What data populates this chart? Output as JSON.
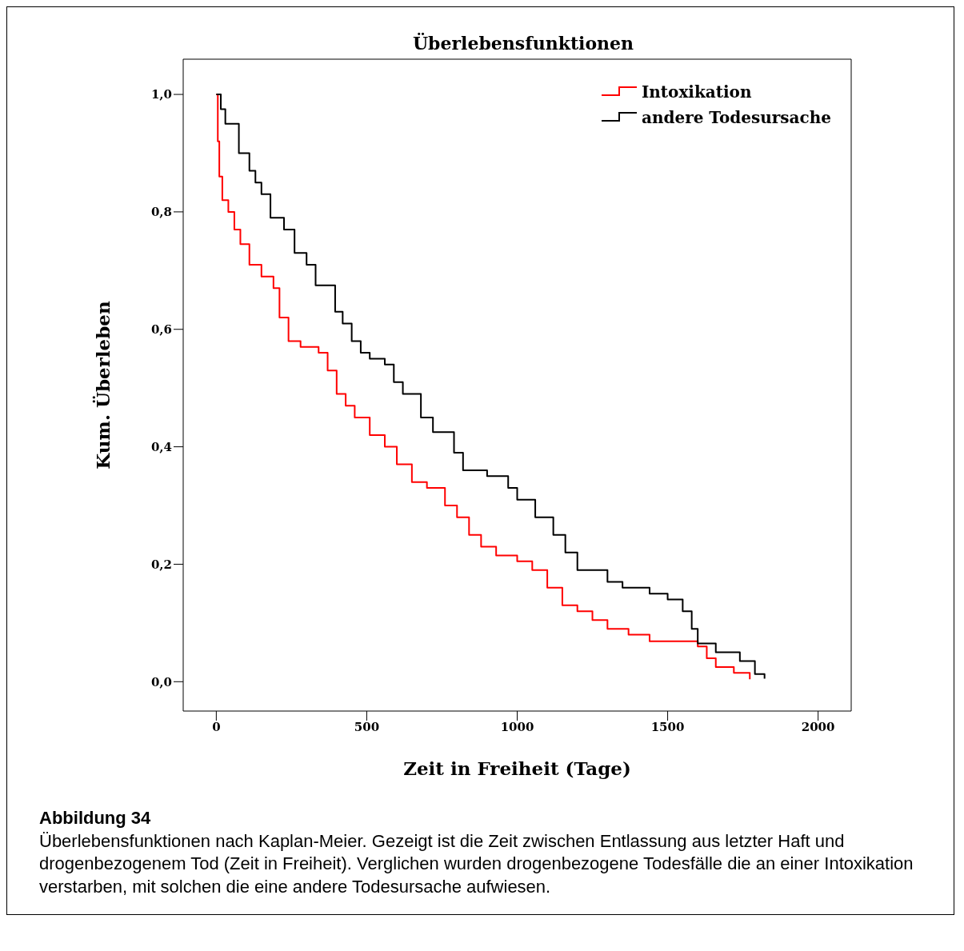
{
  "chart_data": {
    "type": "step",
    "title": "Überlebensfunktionen",
    "xlabel": "Zeit in Freiheit (Tage)",
    "ylabel": "Kum. Überleben",
    "xlim": [
      -110,
      2110
    ],
    "xticks": [
      0,
      500,
      1000,
      1500,
      2000
    ],
    "ylim": [
      -0.05,
      1.06
    ],
    "yticks": [
      {
        "value": 0,
        "label": "0,0"
      },
      {
        "value": 0.2,
        "label": "0,2"
      },
      {
        "value": 0.4,
        "label": "0,4"
      },
      {
        "value": 0.6,
        "label": "0,6"
      },
      {
        "value": 0.8,
        "label": "0,8"
      },
      {
        "value": 1,
        "label": "1,0"
      }
    ],
    "grid": false,
    "legend": "top right",
    "marker": "none",
    "line_style": "solid",
    "series": [
      {
        "name": "Intoxikation",
        "color": "#ff0000",
        "x": [
          0,
          5,
          10,
          20,
          40,
          60,
          80,
          110,
          150,
          190,
          210,
          240,
          280,
          340,
          370,
          400,
          430,
          460,
          510,
          560,
          600,
          650,
          700,
          760,
          800,
          840,
          880,
          930,
          1000,
          1050,
          1100,
          1150,
          1200,
          1250,
          1300,
          1370,
          1440,
          1600,
          1630,
          1660,
          1720,
          1773
        ],
        "values": [
          1.0,
          0.92,
          0.86,
          0.82,
          0.8,
          0.77,
          0.745,
          0.71,
          0.69,
          0.67,
          0.62,
          0.58,
          0.57,
          0.56,
          0.53,
          0.49,
          0.47,
          0.45,
          0.42,
          0.4,
          0.37,
          0.34,
          0.33,
          0.3,
          0.28,
          0.25,
          0.23,
          0.215,
          0.205,
          0.19,
          0.16,
          0.13,
          0.12,
          0.105,
          0.09,
          0.08,
          0.069,
          0.06,
          0.04,
          0.025,
          0.015,
          0.004
        ]
      },
      {
        "name": "andere Todesursache",
        "color": "#000000",
        "x": [
          0,
          15,
          30,
          75,
          110,
          130,
          150,
          180,
          225,
          260,
          300,
          330,
          395,
          420,
          450,
          480,
          510,
          560,
          590,
          620,
          680,
          720,
          790,
          820,
          900,
          970,
          1000,
          1060,
          1120,
          1160,
          1200,
          1300,
          1350,
          1440,
          1500,
          1550,
          1580,
          1600,
          1660,
          1740,
          1790,
          1822
        ],
        "values": [
          1.0,
          0.975,
          0.95,
          0.9,
          0.87,
          0.85,
          0.83,
          0.79,
          0.77,
          0.73,
          0.71,
          0.675,
          0.63,
          0.61,
          0.58,
          0.56,
          0.55,
          0.54,
          0.51,
          0.49,
          0.45,
          0.425,
          0.39,
          0.36,
          0.35,
          0.33,
          0.31,
          0.28,
          0.25,
          0.22,
          0.19,
          0.17,
          0.16,
          0.15,
          0.14,
          0.12,
          0.09,
          0.065,
          0.05,
          0.035,
          0.013,
          0.005
        ]
      }
    ],
    "annotations": [
      "Abbildung 34",
      "Überlebensfunktionen nach Kaplan-Meier. Gezeigt ist die Zeit zwischen Entlassung aus letzter Haft und drogenbezogenem Tod (Zeit in Freiheit). Verglichen wurden drogenbezogene Todesfälle die an einer Intoxikation verstarben, mit solchen die eine andere Todesursache aufwiesen."
    ]
  }
}
